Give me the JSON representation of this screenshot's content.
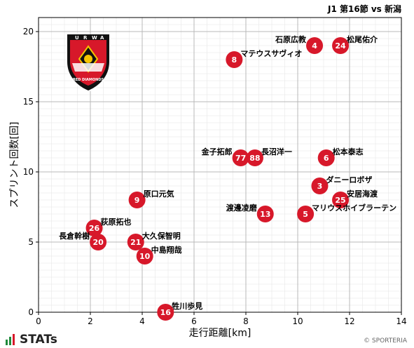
{
  "chart_data": {
    "type": "scatter",
    "title": "J1 第16節 vs 新潟",
    "xlabel": "走行距離[km]",
    "ylabel": "スプリント回数[回]",
    "xlim": [
      0,
      14
    ],
    "ylim": [
      0,
      21
    ],
    "xticks": [
      "0",
      "2",
      "4",
      "6",
      "8",
      "10",
      "12",
      "14"
    ],
    "yticks": [
      "0",
      "5",
      "10",
      "15",
      "20"
    ],
    "grid": true,
    "marker_color": "#d7182a",
    "points": [
      {
        "number": "4",
        "name": "石原広教",
        "x": 10.65,
        "y": 19
      },
      {
        "number": "24",
        "name": "松尾佑介",
        "x": 11.65,
        "y": 19
      },
      {
        "number": "8",
        "name": "マテウスサヴィオ",
        "x": 7.55,
        "y": 18
      },
      {
        "number": "77",
        "name": "金子拓郎",
        "x": 7.8,
        "y": 11
      },
      {
        "number": "88",
        "name": "長沼洋一",
        "x": 8.35,
        "y": 11
      },
      {
        "number": "6",
        "name": "松本泰志",
        "x": 11.1,
        "y": 11
      },
      {
        "number": "3",
        "name": "ダニーロボザ",
        "x": 10.85,
        "y": 9
      },
      {
        "number": "25",
        "name": "安居海渡",
        "x": 11.65,
        "y": 8
      },
      {
        "number": "9",
        "name": "原口元気",
        "x": 3.8,
        "y": 8
      },
      {
        "number": "13",
        "name": "渡邊凌磨",
        "x": 8.75,
        "y": 7
      },
      {
        "number": "5",
        "name": "マリウスホイブラーテン",
        "x": 10.3,
        "y": 7
      },
      {
        "number": "26",
        "name": "荻原拓也",
        "x": 2.15,
        "y": 6
      },
      {
        "number": "20",
        "name": "長倉幹樹",
        "x": 2.3,
        "y": 5
      },
      {
        "number": "21",
        "name": "大久保智明",
        "x": 3.75,
        "y": 5
      },
      {
        "number": "10",
        "name": "中島翔哉",
        "x": 4.1,
        "y": 4
      },
      {
        "number": "16",
        "name": "牲川歩見",
        "x": 4.9,
        "y": 0
      }
    ]
  },
  "logo": {
    "text": "RED DIAMONDS",
    "letters": [
      "U",
      "R",
      "W",
      "A"
    ]
  },
  "brand": {
    "name": "STATs"
  },
  "copyright": "© SPORTERIA"
}
